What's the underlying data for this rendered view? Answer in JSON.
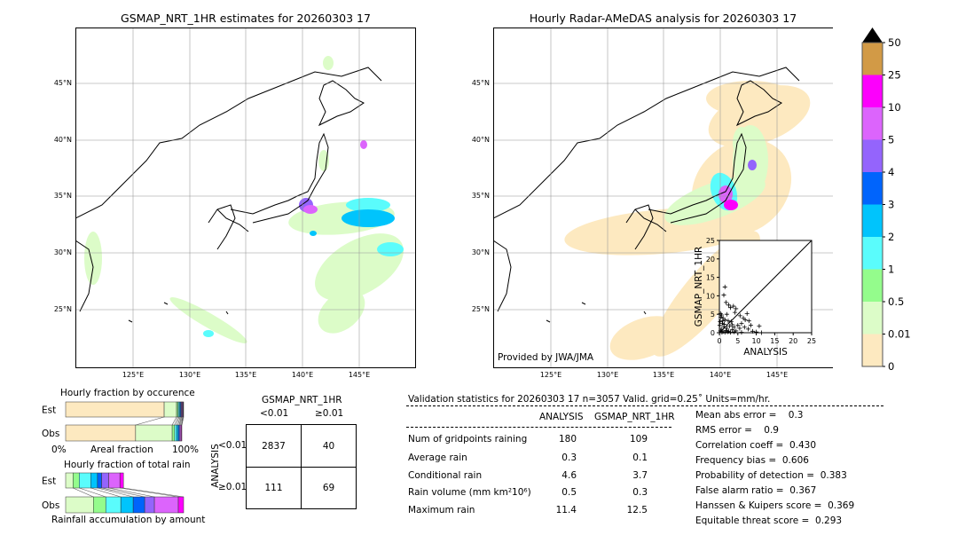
{
  "left_map": {
    "title": "GSMAP_NRT_1HR estimates for 20260303 17",
    "lat_labels": [
      "45°N",
      "40°N",
      "35°N",
      "30°N",
      "25°N"
    ],
    "lon_labels": [
      "125°E",
      "130°E",
      "135°E",
      "140°E",
      "145°E"
    ]
  },
  "right_map": {
    "title": "Hourly Radar-AMeDAS analysis for 20260303 17",
    "lat_labels": [
      "45°N",
      "40°N",
      "35°N",
      "30°N",
      "25°N"
    ],
    "lon_labels": [
      "125°E",
      "130°E",
      "135°E",
      "140°E",
      "145°E"
    ],
    "credit": "Provided by JWA/JMA"
  },
  "colorbar": {
    "ticks": [
      "0",
      "0.01",
      "0.5",
      "1",
      "2",
      "3",
      "4",
      "5",
      "10",
      "25",
      "50"
    ],
    "colors": [
      "#fde9c0",
      "#dcfcc8",
      "#94fc8c",
      "#5afcfc",
      "#00c4fc",
      "#0064fc",
      "#9464fc",
      "#dc64fc",
      "#fc00fc",
      "#d29a46"
    ],
    "extend_color": "#000000"
  },
  "chart_data": [
    {
      "type": "scatter",
      "xlabel": "ANALYSIS",
      "ylabel": "GSMAP_NRT_1HR",
      "xlim": [
        0,
        25
      ],
      "ylim": [
        0,
        25
      ],
      "xticks": [
        "0",
        "5",
        "10",
        "15",
        "20",
        "25"
      ],
      "yticks": [
        "0",
        "5",
        "10",
        "15",
        "20",
        "25"
      ],
      "diagonal": true,
      "points": [
        [
          1.5,
          12.4
        ],
        [
          1.2,
          10.2
        ],
        [
          1.8,
          8.2
        ],
        [
          2.5,
          7.5
        ],
        [
          3,
          6.8
        ],
        [
          3.8,
          7.2
        ],
        [
          4.5,
          6.5
        ],
        [
          4.2,
          5.5
        ],
        [
          2,
          5
        ],
        [
          0.3,
          5.2
        ],
        [
          0.6,
          4.8
        ],
        [
          1,
          4
        ],
        [
          1.5,
          3.5
        ],
        [
          2.4,
          3.2
        ],
        [
          3.2,
          3
        ],
        [
          5.6,
          4.6
        ],
        [
          7.5,
          5.2
        ],
        [
          6.5,
          4
        ],
        [
          7,
          3.5
        ],
        [
          8,
          3.2
        ],
        [
          6,
          2.5
        ],
        [
          5,
          2
        ],
        [
          4,
          1.5
        ],
        [
          3.5,
          2.2
        ],
        [
          2.8,
          1.8
        ],
        [
          2,
          1.2
        ],
        [
          1.2,
          1.6
        ],
        [
          0.8,
          2.5
        ],
        [
          0.5,
          1
        ],
        [
          0.3,
          0.5
        ],
        [
          1,
          0.3
        ],
        [
          1.8,
          0.6
        ],
        [
          2.5,
          0.4
        ],
        [
          3.5,
          0.8
        ],
        [
          4.5,
          0.5
        ],
        [
          5.5,
          1.2
        ],
        [
          6.8,
          1.5
        ],
        [
          7.8,
          1
        ],
        [
          8.5,
          2
        ],
        [
          9,
          0.4
        ],
        [
          10.8,
          1.8
        ],
        [
          10,
          0.2
        ],
        [
          11.4,
          0
        ],
        [
          0.2,
          3
        ],
        [
          0.1,
          2
        ],
        [
          0.7,
          0.1
        ],
        [
          1.5,
          0.1
        ],
        [
          2.2,
          0.2
        ],
        [
          3,
          0.1
        ],
        [
          4,
          0.2
        ],
        [
          6,
          0.1
        ],
        [
          0.4,
          4.2
        ],
        [
          0.9,
          3.2
        ],
        [
          1.3,
          2.3
        ]
      ]
    },
    {
      "type": "bar",
      "title": "Hourly fraction by occurence",
      "xlabel": "Areal fraction",
      "xtick_labels": [
        "0%",
        "100%"
      ],
      "categories": [
        "Est",
        "Obs"
      ],
      "series": [
        {
          "color": "#fde9c0",
          "values": [
            0.835,
            0.593
          ]
        },
        {
          "color": "#dcfcc8",
          "values": [
            0.105,
            0.31
          ]
        },
        {
          "color": "#94fc8c",
          "values": [
            0.012,
            0.02
          ]
        },
        {
          "color": "#5afcfc",
          "values": [
            0.01,
            0.016
          ]
        },
        {
          "color": "#00c4fc",
          "values": [
            0.008,
            0.014
          ]
        },
        {
          "color": "#0064fc",
          "values": [
            0.008,
            0.01
          ]
        },
        {
          "color": "#9464fc",
          "values": [
            0.006,
            0.008
          ]
        },
        {
          "color": "#dc64fc",
          "values": [
            0.006,
            0.009
          ]
        },
        {
          "color": "#fc00fc",
          "values": [
            0.004,
            0.005
          ]
        },
        {
          "color": "#1a1a3a",
          "values": [
            0.006,
            0.0
          ]
        }
      ]
    },
    {
      "type": "bar",
      "title": "Hourly fraction of total rain",
      "xlabel": "Rainfall accumulation by amount",
      "categories": [
        "Est",
        "Obs"
      ],
      "series": [
        {
          "color": "#dcfcc8",
          "values": [
            0.0625,
            0.235
          ]
        },
        {
          "color": "#94fc8c",
          "values": [
            0.0525,
            0.105
          ]
        },
        {
          "color": "#5afcfc",
          "values": [
            0.0975,
            0.1275
          ]
        },
        {
          "color": "#00c4fc",
          "values": [
            0.0575,
            0.105
          ]
        },
        {
          "color": "#0064fc",
          "values": [
            0.035,
            0.0975
          ]
        },
        {
          "color": "#9464fc",
          "values": [
            0.06,
            0.0825
          ]
        },
        {
          "color": "#dc64fc",
          "values": [
            0.095,
            0.2025
          ]
        },
        {
          "color": "#fc00fc",
          "values": [
            0.03,
            0.045
          ]
        }
      ]
    },
    {
      "type": "table",
      "title": "GSMAP_NRT_1HR",
      "col_headers": [
        "<0.01",
        "≥0.01"
      ],
      "row_label": "ANALYSIS",
      "row_headers": [
        "<0.01",
        "≥0.01"
      ],
      "cells": [
        [
          "2837",
          "40"
        ],
        [
          "111",
          "69"
        ]
      ]
    }
  ],
  "stats": {
    "header": "Validation statistics for 20260303 17  n=3057 Valid. grid=0.25˚ Units=mm/hr.",
    "col_headers": [
      "ANALYSIS",
      "GSMAP_NRT_1HR"
    ],
    "rows": [
      {
        "label": "Num of gridpoints raining",
        "analysis": "180",
        "gsmap": "109"
      },
      {
        "label": "Average rain",
        "analysis": "0.3",
        "gsmap": "0.1"
      },
      {
        "label": "Conditional rain",
        "analysis": "4.6",
        "gsmap": "3.7"
      },
      {
        "label": "Rain volume (mm km²10⁶)",
        "analysis": "0.5",
        "gsmap": "0.3"
      },
      {
        "label": "Maximum rain",
        "analysis": "11.4",
        "gsmap": "12.5"
      }
    ],
    "scores": [
      "Mean abs error =    0.3",
      "RMS error =    0.9",
      "Correlation coeff =  0.430",
      "Frequency bias =  0.606",
      "Probability of detection =  0.383",
      "False alarm ratio =  0.367",
      "Hanssen & Kuipers score =  0.369",
      "Equitable threat score =  0.293"
    ]
  }
}
